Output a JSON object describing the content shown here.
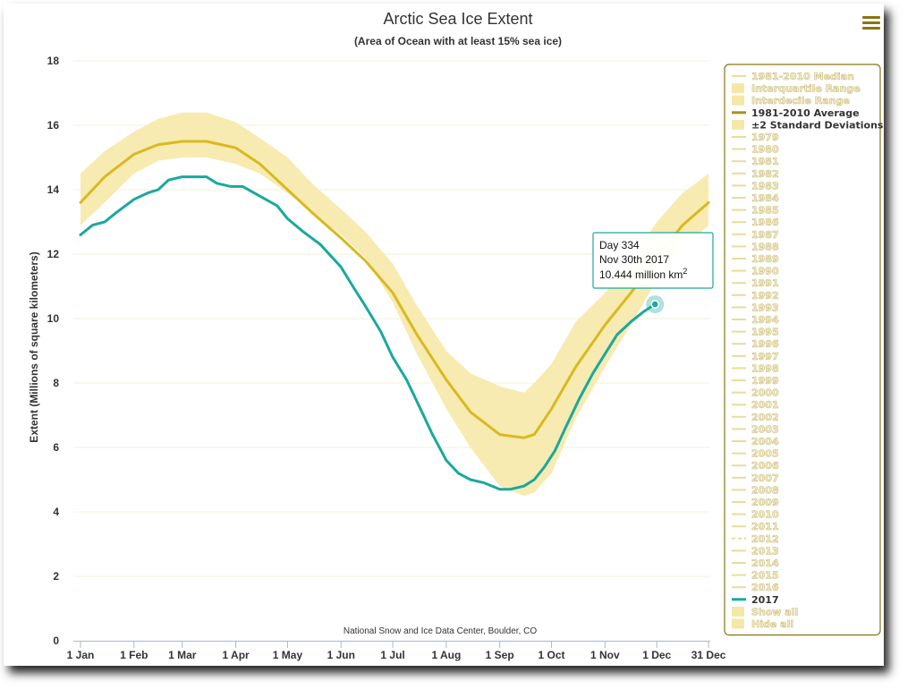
{
  "chart_data": {
    "type": "area",
    "title": "Arctic Sea Ice Extent",
    "subtitle": "(Area of Ocean with at least 15% sea ice)",
    "ylabel": "Extent (Millions of square kilometers)",
    "xlabel": "",
    "credit": "National Snow and Ice Data Center, Boulder, CO",
    "ylim": [
      0,
      18
    ],
    "yticks": [
      0,
      2,
      4,
      6,
      8,
      10,
      12,
      14,
      16,
      18
    ],
    "xlim": [
      1,
      366
    ],
    "xticks": [
      {
        "day": 1,
        "label": "1 Jan"
      },
      {
        "day": 32,
        "label": "1 Feb"
      },
      {
        "day": 60,
        "label": "1 Mar"
      },
      {
        "day": 91,
        "label": "1 Apr"
      },
      {
        "day": 121,
        "label": "1 May"
      },
      {
        "day": 152,
        "label": "1 Jun"
      },
      {
        "day": 182,
        "label": "1 Jul"
      },
      {
        "day": 213,
        "label": "1 Aug"
      },
      {
        "day": 244,
        "label": "1 Sep"
      },
      {
        "day": 274,
        "label": "1 Oct"
      },
      {
        "day": 305,
        "label": "1 Nov"
      },
      {
        "day": 335,
        "label": "1 Dec"
      },
      {
        "day": 365,
        "label": "31 Dec"
      }
    ],
    "grid": true,
    "legend_position": "right",
    "series": [
      {
        "name": "±2 Standard Deviations",
        "kind": "band",
        "color": "#f7ebb1",
        "x": [
          1,
          15,
          32,
          46,
          60,
          74,
          91,
          105,
          121,
          135,
          152,
          166,
          182,
          196,
          213,
          227,
          244,
          258,
          264,
          274,
          288,
          305,
          320,
          335,
          350,
          365
        ],
        "low": [
          12.9,
          13.6,
          14.5,
          14.9,
          15.0,
          15.0,
          14.8,
          14.5,
          13.9,
          13.3,
          12.6,
          11.9,
          10.5,
          8.9,
          7.2,
          6.0,
          4.8,
          4.5,
          4.6,
          5.2,
          6.9,
          8.5,
          9.8,
          11.2,
          12.2,
          12.9
        ],
        "high": [
          14.5,
          15.2,
          15.8,
          16.2,
          16.4,
          16.4,
          16.1,
          15.6,
          15.0,
          14.2,
          13.4,
          12.7,
          11.7,
          10.4,
          9.0,
          8.3,
          7.9,
          7.7,
          8.0,
          8.6,
          9.9,
          10.8,
          11.8,
          13.0,
          13.9,
          14.5
        ]
      },
      {
        "name": "1981-2010 Average",
        "kind": "line",
        "color": "#d9b920",
        "x": [
          1,
          15,
          32,
          46,
          60,
          74,
          91,
          105,
          121,
          135,
          152,
          166,
          182,
          196,
          213,
          227,
          244,
          258,
          264,
          274,
          288,
          305,
          320,
          335,
          350,
          365
        ],
        "y": [
          13.6,
          14.4,
          15.1,
          15.4,
          15.5,
          15.5,
          15.3,
          14.8,
          14.0,
          13.3,
          12.5,
          11.8,
          10.8,
          9.5,
          8.1,
          7.1,
          6.4,
          6.3,
          6.4,
          7.2,
          8.5,
          9.8,
          10.8,
          11.9,
          12.9,
          13.6
        ]
      },
      {
        "name": "2017",
        "kind": "line",
        "color": "#1aa89e",
        "x": [
          1,
          8,
          15,
          22,
          32,
          40,
          46,
          52,
          60,
          66,
          74,
          80,
          88,
          95,
          105,
          115,
          121,
          130,
          140,
          152,
          160,
          166,
          175,
          182,
          190,
          198,
          205,
          213,
          220,
          227,
          235,
          244,
          250,
          258,
          264,
          270,
          276,
          282,
          290,
          298,
          305,
          312,
          320,
          327,
          334
        ],
        "y": [
          12.6,
          12.9,
          13.0,
          13.3,
          13.7,
          13.9,
          14.0,
          14.3,
          14.4,
          14.4,
          14.4,
          14.2,
          14.1,
          14.1,
          13.8,
          13.5,
          13.1,
          12.7,
          12.3,
          11.6,
          10.9,
          10.4,
          9.6,
          8.8,
          8.1,
          7.2,
          6.4,
          5.6,
          5.2,
          5.0,
          4.9,
          4.7,
          4.7,
          4.8,
          5.0,
          5.4,
          5.9,
          6.6,
          7.5,
          8.3,
          8.9,
          9.5,
          9.9,
          10.2,
          10.444
        ]
      }
    ],
    "tooltip": {
      "day": 334,
      "value": 10.444,
      "line1": "Day 334",
      "line2": "Nov 30th 2017",
      "line3": "10.444 million km",
      "sup": "2"
    }
  },
  "legend": {
    "border_color": "#8a7414",
    "items": [
      {
        "label": "1981-2010 Median",
        "swatch": "line",
        "color": "#e9dc9a",
        "text_color": "#c9b976",
        "outlined": true
      },
      {
        "label": "Interquartile Range",
        "swatch": "box",
        "color": "#f4e7a8",
        "text_color": "#c9b976",
        "outlined": true
      },
      {
        "label": "Interdecile Range",
        "swatch": "box",
        "color": "#f4e7a8",
        "text_color": "#c9b976",
        "outlined": true
      },
      {
        "label": "1981-2010 Average",
        "swatch": "line",
        "color": "#a8921a",
        "text_color": "#333333",
        "outlined": false
      },
      {
        "label": "±2 Standard Deviations",
        "swatch": "box",
        "color": "#f4e7a8",
        "text_color": "#333333",
        "outlined": false
      },
      {
        "label": "1979",
        "swatch": "line",
        "color": "#e9dc9a",
        "text_color": "#c9b976",
        "outlined": true
      },
      {
        "label": "1980",
        "swatch": "line",
        "color": "#e9dc9a",
        "text_color": "#c9b976",
        "outlined": true
      },
      {
        "label": "1981",
        "swatch": "line",
        "color": "#e9dc9a",
        "text_color": "#c9b976",
        "outlined": true
      },
      {
        "label": "1982",
        "swatch": "line",
        "color": "#e9dc9a",
        "text_color": "#c9b976",
        "outlined": true
      },
      {
        "label": "1983",
        "swatch": "line",
        "color": "#e9dc9a",
        "text_color": "#c9b976",
        "outlined": true
      },
      {
        "label": "1984",
        "swatch": "line",
        "color": "#e9dc9a",
        "text_color": "#c9b976",
        "outlined": true
      },
      {
        "label": "1985",
        "swatch": "line",
        "color": "#e9dc9a",
        "text_color": "#c9b976",
        "outlined": true
      },
      {
        "label": "1986",
        "swatch": "line",
        "color": "#e9dc9a",
        "text_color": "#c9b976",
        "outlined": true
      },
      {
        "label": "1987",
        "swatch": "line",
        "color": "#e9dc9a",
        "text_color": "#c9b976",
        "outlined": true
      },
      {
        "label": "1988",
        "swatch": "line",
        "color": "#e9dc9a",
        "text_color": "#c9b976",
        "outlined": true
      },
      {
        "label": "1989",
        "swatch": "line",
        "color": "#e9dc9a",
        "text_color": "#c9b976",
        "outlined": true
      },
      {
        "label": "1990",
        "swatch": "line",
        "color": "#e9dc9a",
        "text_color": "#c9b976",
        "outlined": true
      },
      {
        "label": "1991",
        "swatch": "line",
        "color": "#e9dc9a",
        "text_color": "#c9b976",
        "outlined": true
      },
      {
        "label": "1992",
        "swatch": "line",
        "color": "#e9dc9a",
        "text_color": "#c9b976",
        "outlined": true
      },
      {
        "label": "1993",
        "swatch": "line",
        "color": "#e9dc9a",
        "text_color": "#c9b976",
        "outlined": true
      },
      {
        "label": "1994",
        "swatch": "line",
        "color": "#e9dc9a",
        "text_color": "#c9b976",
        "outlined": true
      },
      {
        "label": "1995",
        "swatch": "line",
        "color": "#e9dc9a",
        "text_color": "#c9b976",
        "outlined": true
      },
      {
        "label": "1996",
        "swatch": "line",
        "color": "#e9dc9a",
        "text_color": "#c9b976",
        "outlined": true
      },
      {
        "label": "1997",
        "swatch": "line",
        "color": "#e9dc9a",
        "text_color": "#c9b976",
        "outlined": true
      },
      {
        "label": "1998",
        "swatch": "line",
        "color": "#e9dc9a",
        "text_color": "#c9b976",
        "outlined": true
      },
      {
        "label": "1999",
        "swatch": "line",
        "color": "#e9dc9a",
        "text_color": "#c9b976",
        "outlined": true
      },
      {
        "label": "2000",
        "swatch": "line",
        "color": "#e9dc9a",
        "text_color": "#c9b976",
        "outlined": true
      },
      {
        "label": "2001",
        "swatch": "line",
        "color": "#e9dc9a",
        "text_color": "#c9b976",
        "outlined": true
      },
      {
        "label": "2002",
        "swatch": "line",
        "color": "#e9dc9a",
        "text_color": "#c9b976",
        "outlined": true
      },
      {
        "label": "2003",
        "swatch": "line",
        "color": "#e9dc9a",
        "text_color": "#c9b976",
        "outlined": true
      },
      {
        "label": "2004",
        "swatch": "line",
        "color": "#e9dc9a",
        "text_color": "#c9b976",
        "outlined": true
      },
      {
        "label": "2005",
        "swatch": "line",
        "color": "#e9dc9a",
        "text_color": "#c9b976",
        "outlined": true
      },
      {
        "label": "2006",
        "swatch": "line",
        "color": "#e9dc9a",
        "text_color": "#c9b976",
        "outlined": true
      },
      {
        "label": "2007",
        "swatch": "line",
        "color": "#e9dc9a",
        "text_color": "#c9b976",
        "outlined": true
      },
      {
        "label": "2008",
        "swatch": "line",
        "color": "#e9dc9a",
        "text_color": "#c9b976",
        "outlined": true
      },
      {
        "label": "2009",
        "swatch": "line",
        "color": "#e9dc9a",
        "text_color": "#c9b976",
        "outlined": true
      },
      {
        "label": "2010",
        "swatch": "line",
        "color": "#e9dc9a",
        "text_color": "#c9b976",
        "outlined": true
      },
      {
        "label": "2011",
        "swatch": "line",
        "color": "#e9dc9a",
        "text_color": "#c9b976",
        "outlined": true
      },
      {
        "label": "2012",
        "swatch": "dash",
        "color": "#e9dc9a",
        "text_color": "#c9b976",
        "outlined": true
      },
      {
        "label": "2013",
        "swatch": "line",
        "color": "#e9dc9a",
        "text_color": "#c9b976",
        "outlined": true
      },
      {
        "label": "2014",
        "swatch": "line",
        "color": "#e9dc9a",
        "text_color": "#c9b976",
        "outlined": true
      },
      {
        "label": "2015",
        "swatch": "line",
        "color": "#e9dc9a",
        "text_color": "#c9b976",
        "outlined": true
      },
      {
        "label": "2016",
        "swatch": "line",
        "color": "#e9dc9a",
        "text_color": "#c9b976",
        "outlined": true
      },
      {
        "label": "2017",
        "swatch": "line",
        "color": "#1aa89e",
        "text_color": "#333333",
        "outlined": false
      },
      {
        "label": "Show all",
        "swatch": "box",
        "color": "#f4e7a8",
        "text_color": "#c9b976",
        "outlined": true
      },
      {
        "label": "Hide all",
        "swatch": "box",
        "color": "#f4e7a8",
        "text_color": "#c9b976",
        "outlined": true
      }
    ]
  },
  "menu": {
    "icon": "hamburger-menu-icon"
  }
}
